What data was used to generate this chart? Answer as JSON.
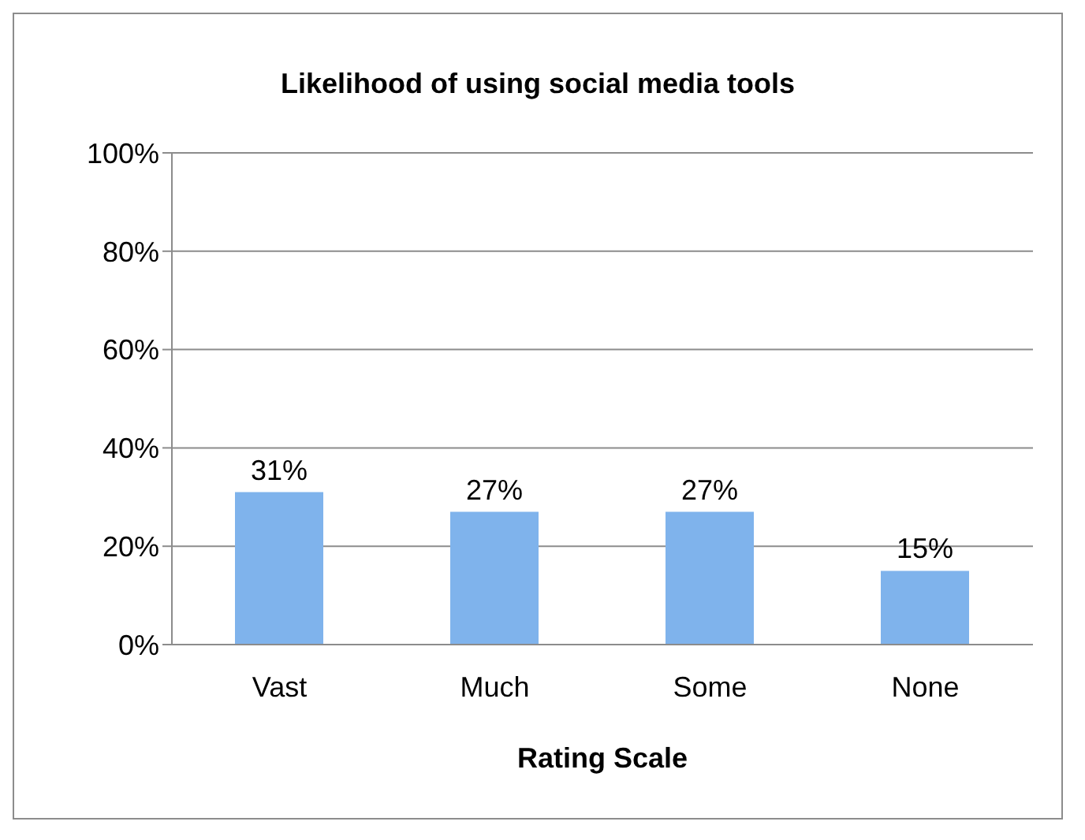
{
  "chart_data": {
    "type": "bar",
    "title": "Likelihood of using social media tools",
    "xlabel": "Rating Scale",
    "categories": [
      "Vast",
      "Much",
      "Some",
      "None"
    ],
    "values": [
      31,
      27,
      27,
      15
    ],
    "value_labels": [
      "31%",
      "27%",
      "27%",
      "15%"
    ],
    "color": "#7fb3ec",
    "ylim": [
      0,
      100
    ],
    "yticks": [
      {
        "value": 0,
        "label": "0%"
      },
      {
        "value": 20,
        "label": "20%"
      },
      {
        "value": 40,
        "label": "40%"
      },
      {
        "value": 60,
        "label": "60%"
      },
      {
        "value": 80,
        "label": "80%"
      },
      {
        "value": 100,
        "label": "100%"
      }
    ],
    "grid": "y"
  }
}
